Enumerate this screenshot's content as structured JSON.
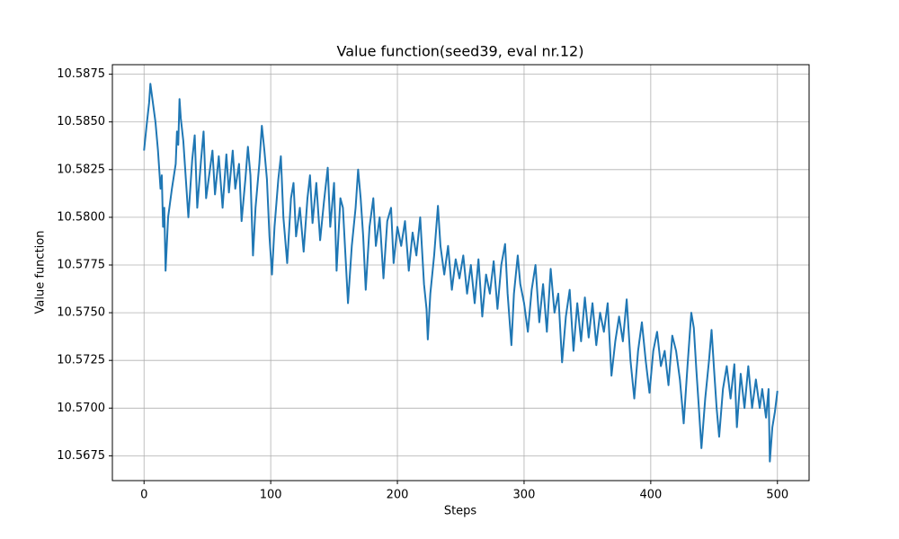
{
  "chart_data": {
    "type": "line",
    "title": "Value function(seed39, eval nr.12)",
    "xlabel": "Steps",
    "ylabel": "Value function",
    "xlim": [
      -25,
      525
    ],
    "ylim": [
      10.5662,
      10.588
    ],
    "xticks": [
      0,
      100,
      200,
      300,
      400,
      500
    ],
    "yticks": [
      10.5675,
      {
        "value": 10.57,
        "label": "10.5700"
      },
      10.5725,
      {
        "value": 10.575,
        "label": "10.5750"
      },
      10.5775,
      {
        "value": 10.58,
        "label": "10.5800"
      },
      10.5825,
      {
        "value": 10.585,
        "label": "10.5850"
      },
      10.5875
    ],
    "grid": true,
    "series": [
      {
        "color": "#1f77b4",
        "x": [
          0,
          2,
          4,
          5,
          7,
          9,
          11,
          13,
          14,
          15,
          16,
          17,
          19,
          22,
          25,
          26,
          27,
          28,
          29,
          31,
          33,
          35,
          38,
          40,
          42,
          45,
          47,
          49,
          52,
          54,
          56,
          59,
          62,
          65,
          67,
          70,
          72,
          75,
          77,
          80,
          82,
          84,
          86,
          88,
          91,
          93,
          95,
          97,
          99,
          101,
          103,
          106,
          108,
          110,
          113,
          116,
          118,
          120,
          123,
          126,
          129,
          131,
          133,
          136,
          139,
          142,
          145,
          147,
          150,
          152,
          155,
          157,
          159,
          161,
          164,
          167,
          169,
          171,
          173,
          175,
          178,
          181,
          183,
          186,
          189,
          192,
          195,
          197,
          200,
          203,
          206,
          209,
          212,
          215,
          218,
          221,
          223,
          224,
          226,
          229,
          232,
          234,
          237,
          240,
          243,
          246,
          249,
          252,
          255,
          258,
          261,
          264,
          267,
          270,
          273,
          276,
          279,
          282,
          285,
          287,
          290,
          292,
          295,
          297,
          300,
          303,
          306,
          309,
          312,
          315,
          318,
          321,
          324,
          327,
          330,
          333,
          336,
          339,
          342,
          345,
          348,
          351,
          354,
          357,
          360,
          363,
          366,
          369,
          372,
          375,
          378,
          381,
          384,
          387,
          390,
          393,
          396,
          399,
          402,
          405,
          408,
          411,
          414,
          417,
          420,
          423,
          425,
          426,
          429,
          432,
          434,
          436,
          438,
          440,
          443,
          446,
          448,
          450,
          452,
          454,
          457,
          460,
          463,
          466,
          468,
          471,
          474,
          477,
          480,
          483,
          486,
          488,
          491,
          493,
          494,
          496,
          498,
          500
        ],
        "values": [
          10.5835,
          10.5848,
          10.586,
          10.587,
          10.586,
          10.585,
          10.5835,
          10.5815,
          10.5822,
          10.5795,
          10.5805,
          10.5772,
          10.58,
          10.5815,
          10.5828,
          10.5845,
          10.5838,
          10.5862,
          10.5852,
          10.584,
          10.582,
          10.58,
          10.583,
          10.5843,
          10.5805,
          10.583,
          10.5845,
          10.581,
          10.5825,
          10.5835,
          10.5812,
          10.5832,
          10.5805,
          10.5833,
          10.5813,
          10.5835,
          10.5815,
          10.5828,
          10.5798,
          10.582,
          10.5837,
          10.5822,
          10.578,
          10.5805,
          10.5828,
          10.5848,
          10.5835,
          10.582,
          10.579,
          10.577,
          10.5795,
          10.582,
          10.5832,
          10.58,
          10.5776,
          10.581,
          10.5818,
          10.579,
          10.5805,
          10.5782,
          10.581,
          10.5822,
          10.5797,
          10.5818,
          10.5788,
          10.5808,
          10.5826,
          10.5795,
          10.5818,
          10.5772,
          10.581,
          10.5805,
          10.578,
          10.5755,
          10.5785,
          10.5805,
          10.5825,
          10.581,
          10.579,
          10.5762,
          10.5795,
          10.581,
          10.5785,
          10.58,
          10.5768,
          10.5798,
          10.5805,
          10.5776,
          10.5795,
          10.5785,
          10.5798,
          10.5772,
          10.5792,
          10.578,
          10.58,
          10.5765,
          10.5752,
          10.5736,
          10.576,
          10.578,
          10.5806,
          10.5785,
          10.577,
          10.5785,
          10.5762,
          10.5778,
          10.5768,
          10.578,
          10.576,
          10.5775,
          10.5755,
          10.5778,
          10.5748,
          10.577,
          10.576,
          10.5777,
          10.5752,
          10.5775,
          10.5786,
          10.576,
          10.5733,
          10.576,
          10.578,
          10.5765,
          10.5755,
          10.574,
          10.5762,
          10.5775,
          10.5745,
          10.5765,
          10.574,
          10.5773,
          10.575,
          10.576,
          10.5724,
          10.5748,
          10.5762,
          10.573,
          10.5755,
          10.5735,
          10.5758,
          10.5737,
          10.5755,
          10.5733,
          10.575,
          10.574,
          10.5755,
          10.5717,
          10.5735,
          10.5748,
          10.5735,
          10.5757,
          10.5725,
          10.5705,
          10.573,
          10.5745,
          10.5725,
          10.5708,
          10.573,
          10.574,
          10.5722,
          10.573,
          10.5712,
          10.5738,
          10.573,
          10.5715,
          10.57,
          10.5692,
          10.5722,
          10.575,
          10.5742,
          10.572,
          10.57,
          10.5679,
          10.5705,
          10.5725,
          10.5741,
          10.572,
          10.57,
          10.5685,
          10.571,
          10.5722,
          10.5705,
          10.5723,
          10.569,
          10.5718,
          10.57,
          10.5722,
          10.57,
          10.5715,
          10.57,
          10.571,
          10.5695,
          10.571,
          10.5672,
          10.569,
          10.5698,
          10.5709
        ]
      }
    ]
  }
}
